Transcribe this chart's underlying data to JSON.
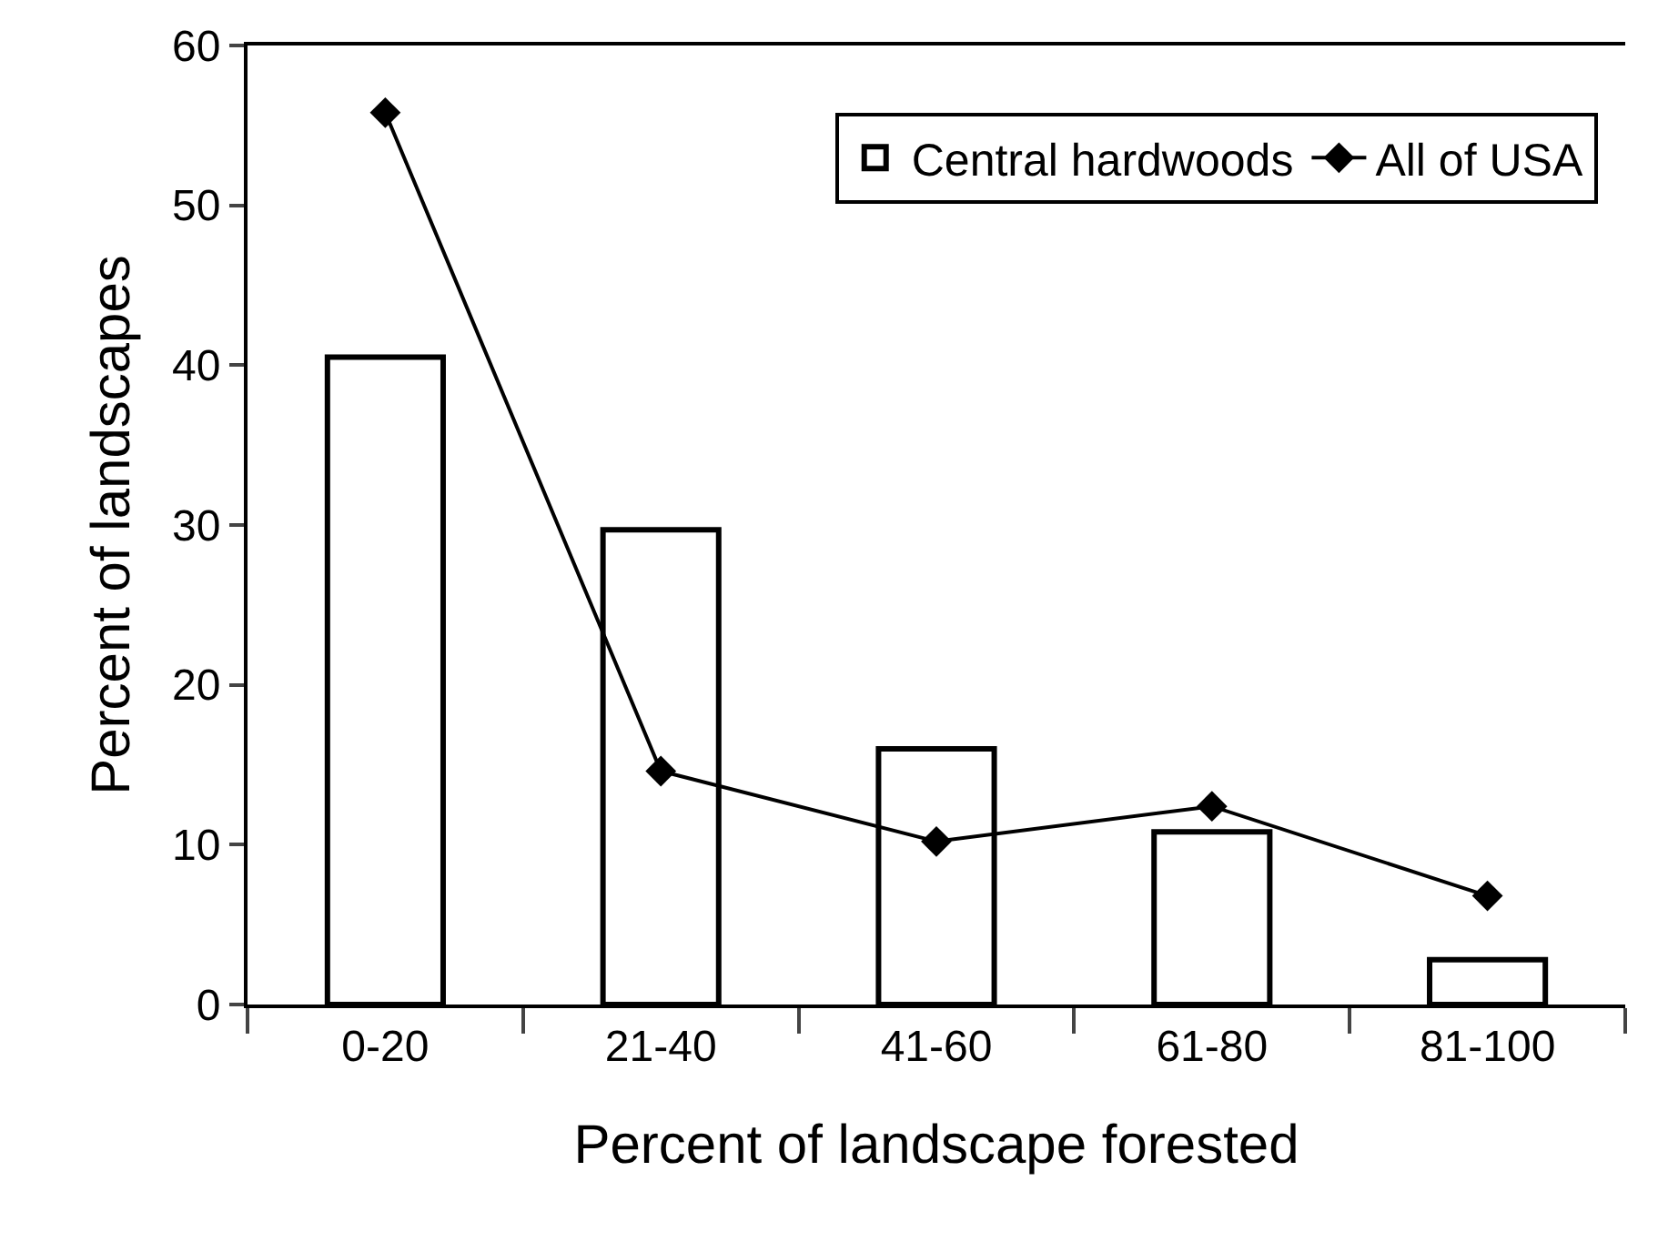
{
  "chart_data": {
    "type": "bar",
    "xlabel": "Percent of landscape forested",
    "ylabel": "Percent of landscapes",
    "categories": [
      "0-20",
      "21-40",
      "41-60",
      "61-80",
      "81-100"
    ],
    "series": [
      {
        "name": "Central hardwoods",
        "color": "#ffffff",
        "values": [
          40.5,
          29.7,
          16.0,
          10.8,
          2.8
        ]
      },
      {
        "name": "All of USA",
        "type": "line",
        "color": "#000000",
        "values": [
          55.8,
          14.6,
          10.2,
          12.4,
          6.8
        ],
        "marker": "diamond"
      }
    ],
    "ylim": [
      0,
      60
    ],
    "yticks": [
      0,
      10,
      20,
      30,
      40,
      50,
      60
    ],
    "legend": "top right"
  }
}
